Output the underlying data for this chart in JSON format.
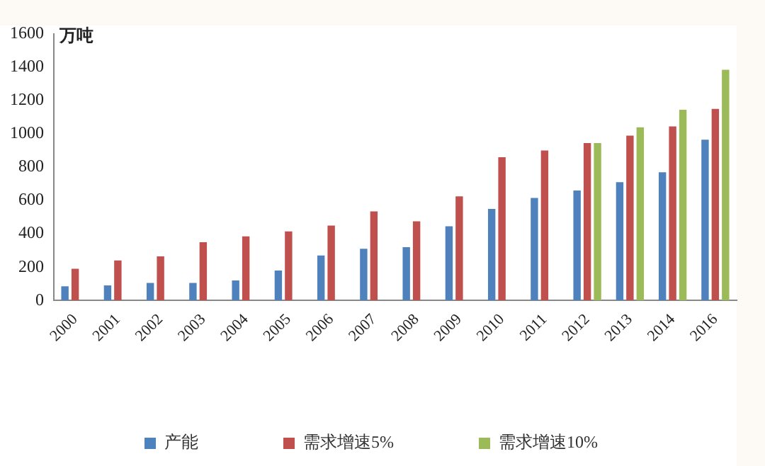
{
  "chart_data": {
    "type": "bar",
    "ylabel": "万吨",
    "categories": [
      "2000",
      "2001",
      "2002",
      "2003",
      "2004",
      "2005",
      "2006",
      "2007",
      "2008",
      "2009",
      "2010",
      "2011",
      "2012",
      "2013",
      "2014",
      "2016"
    ],
    "series": [
      {
        "name": "产能",
        "color": "#4f81bd",
        "values": [
          85,
          90,
          105,
          105,
          120,
          180,
          270,
          310,
          320,
          445,
          550,
          615,
          660,
          710,
          770,
          965
        ]
      },
      {
        "name": "需求增速5%",
        "color": "#c0504d",
        "values": [
          190,
          240,
          265,
          350,
          385,
          415,
          450,
          535,
          475,
          625,
          860,
          900,
          945,
          990,
          1045,
          1150
        ]
      },
      {
        "name": "需求增速10%",
        "color": "#9bbb59",
        "values": [
          null,
          null,
          null,
          null,
          null,
          null,
          null,
          null,
          null,
          null,
          null,
          null,
          945,
          1040,
          1145,
          1385
        ]
      }
    ],
    "ylim": [
      0,
      1600
    ],
    "yticks": [
      0,
      200,
      400,
      600,
      800,
      1000,
      1200,
      1400,
      1600
    ],
    "grid": false,
    "legend": "bottom"
  }
}
